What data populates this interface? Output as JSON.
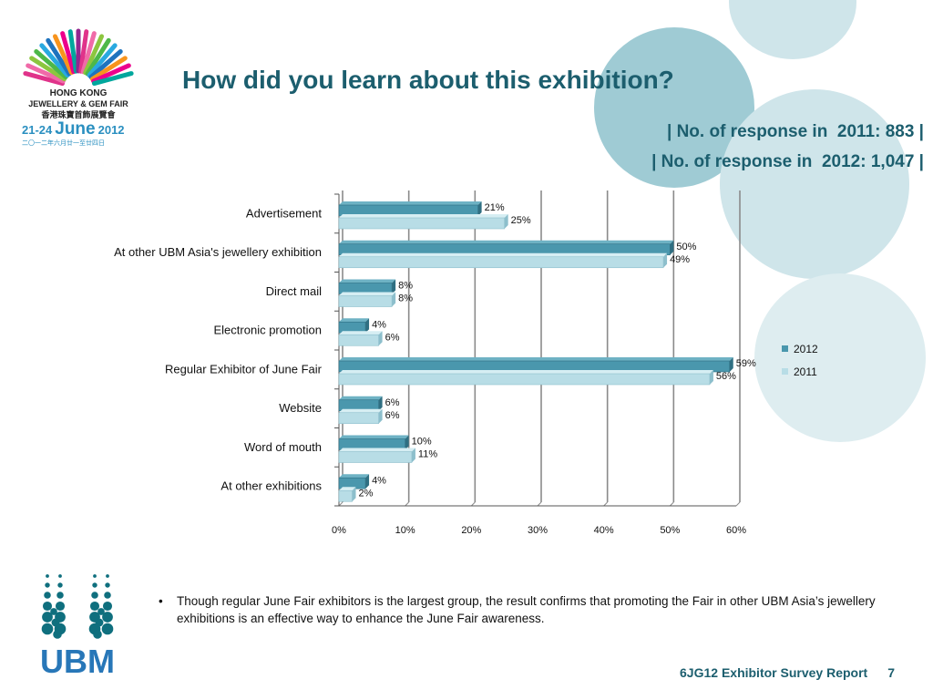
{
  "header": {
    "title": "How did you learn about this exhibition?",
    "responses_2011": "| No. of response in  2011: 883 |",
    "responses_2012": "| No. of response in  2012: 1,047 |"
  },
  "logos": {
    "fair": {
      "line1": "HONG KONG",
      "line2": "JEWELLERY & GEM FAIR",
      "line3": "香港珠寶首飾展覽會",
      "date_prefix": "21-24",
      "date_month": "June",
      "date_year": "2012",
      "chinese_date": "二〇一二年六月廿一至廿四日"
    },
    "ubm": {
      "name": "UBM"
    }
  },
  "colors": {
    "series_2012": "#4a97ad",
    "series_2011": "#b8dde6",
    "title": "#1c5e6e",
    "grid": "#8a8a8a"
  },
  "chart_data": {
    "type": "bar",
    "orientation": "horizontal",
    "categories": [
      "Advertisement",
      "At other UBM Asia's jewellery exhibition",
      "Direct mail",
      "Electronic promotion",
      "Regular Exhibitor of June Fair",
      "Website",
      "Word of mouth",
      "At other exhibitions"
    ],
    "series": [
      {
        "name": "2012",
        "values": [
          21,
          50,
          8,
          4,
          59,
          6,
          10,
          4
        ],
        "labels": [
          "21%",
          "50%",
          "8%",
          "4%",
          "59%",
          "6%",
          "10%",
          "4%"
        ]
      },
      {
        "name": "2011",
        "values": [
          25,
          49,
          8,
          6,
          56,
          6,
          11,
          2
        ],
        "labels": [
          "25%",
          "49%",
          "8%",
          "6%",
          "56%",
          "6%",
          "11%",
          "2%"
        ]
      }
    ],
    "xlim": [
      0,
      60
    ],
    "xticks": [
      "0%",
      "10%",
      "20%",
      "30%",
      "40%",
      "50%",
      "60%"
    ],
    "grid": true,
    "legend_position": "right",
    "xlabel": "",
    "ylabel": ""
  },
  "note": "Though regular June Fair exhibitors is the largest group, the result confirms that promoting the Fair in other UBM Asia’s jewellery exhibitions is an effective way to enhance the June Fair awareness.",
  "footer": {
    "report": "6JG12 Exhibitor Survey Report",
    "page": "7"
  }
}
